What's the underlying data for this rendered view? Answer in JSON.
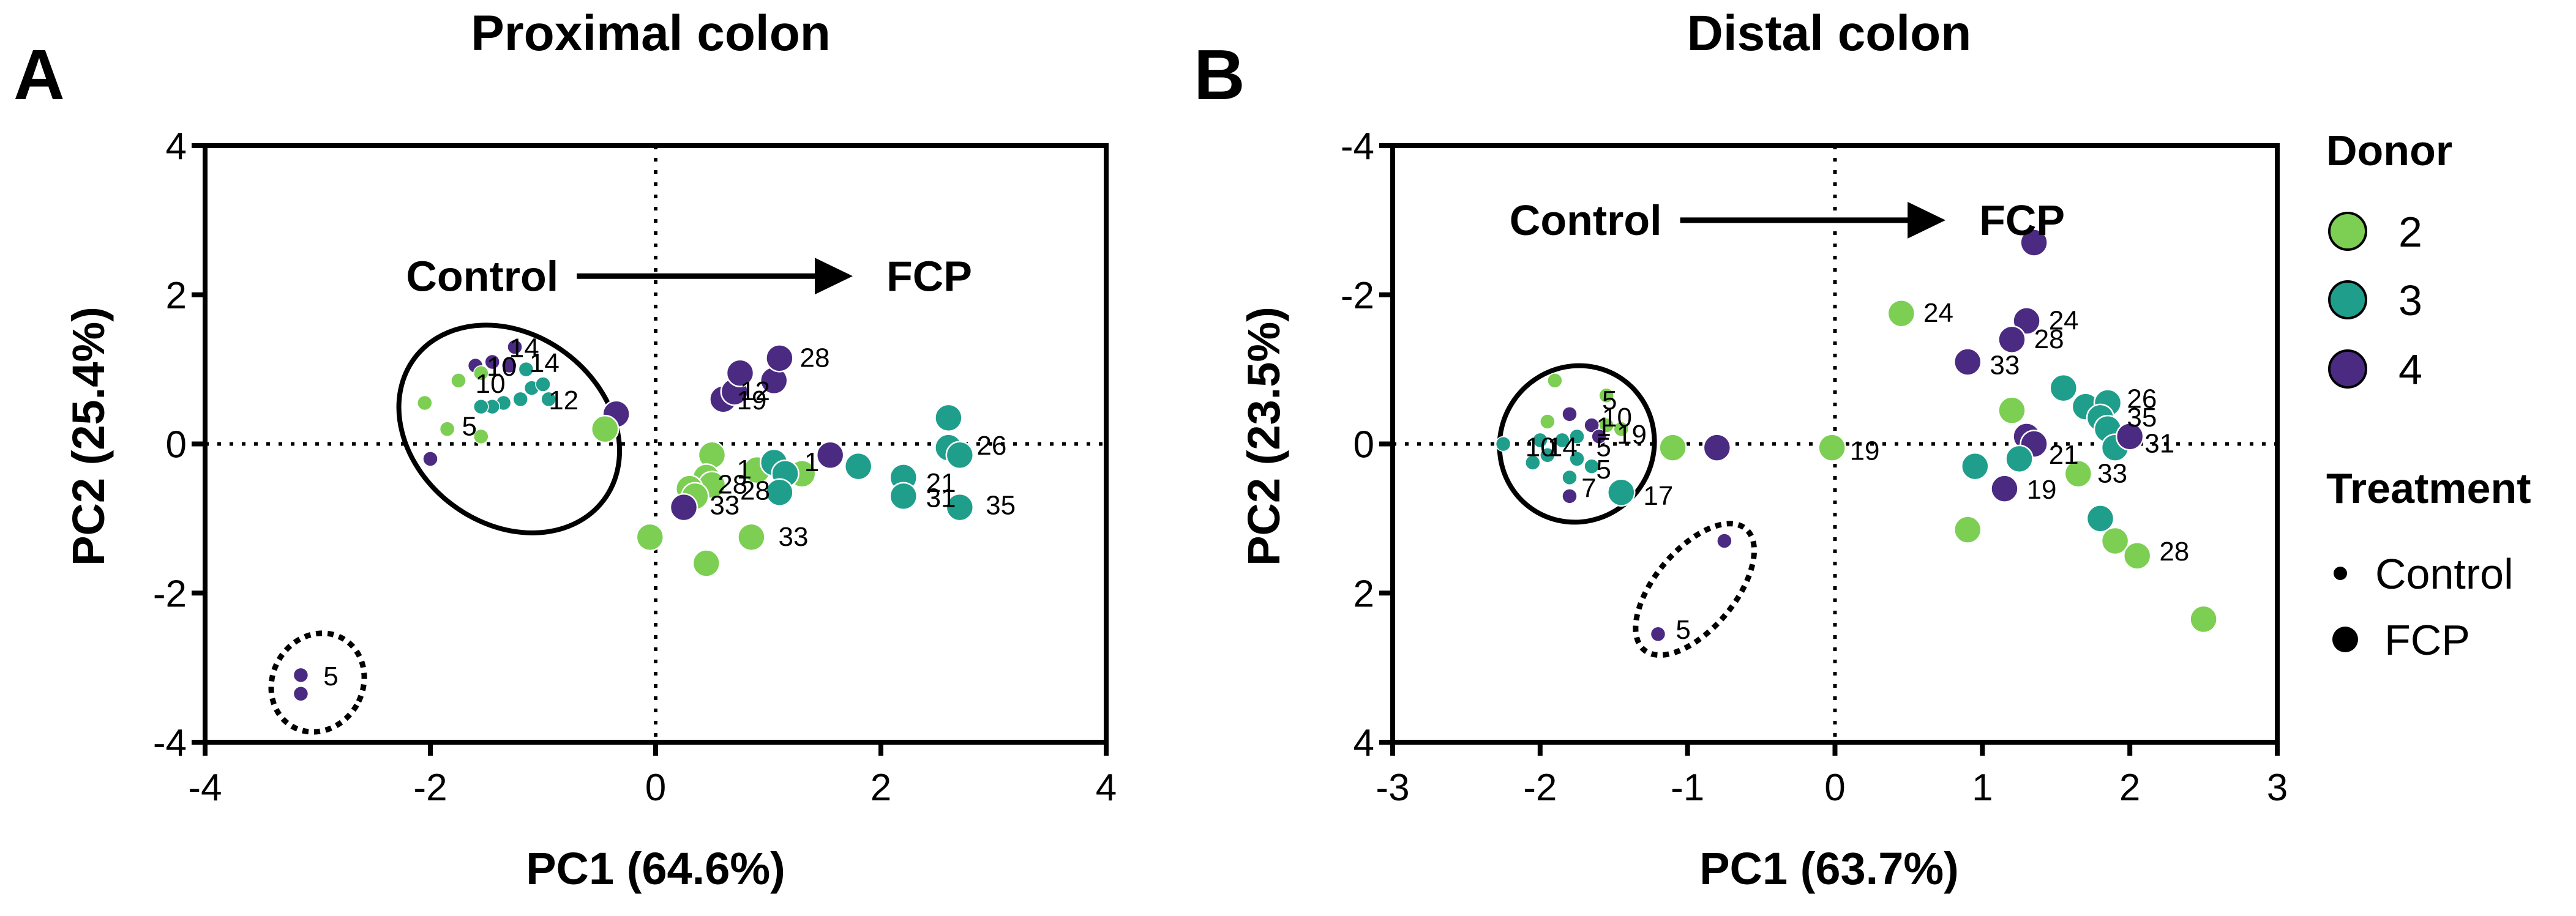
{
  "colors": {
    "donor2": "#7ccf52",
    "donor3": "#1f9e8c",
    "donor4": "#4b2a82",
    "axis": "#000000"
  },
  "figure_labels": [
    "A",
    "B"
  ],
  "legend": {
    "donor_title": "Donor",
    "donors": [
      {
        "label": "2",
        "color_key": "donor2"
      },
      {
        "label": "3",
        "color_key": "donor3"
      },
      {
        "label": "4",
        "color_key": "donor4"
      }
    ],
    "treatment_title": "Treatment",
    "treatments": [
      {
        "label": "Control",
        "size": "small"
      },
      {
        "label": "FCP",
        "size": "large"
      }
    ]
  },
  "chart_data": [
    {
      "type": "scatter",
      "panel": "A",
      "title": "Proximal colon",
      "xlabel": "PC1 (64.6%)",
      "ylabel": "PC2 (25.4%)",
      "xlim": [
        -4,
        4
      ],
      "ylim": [
        -4,
        4
      ],
      "y_inverted": false,
      "xticks": [
        -4,
        -2,
        0,
        2,
        4
      ],
      "yticks": [
        4,
        2,
        0,
        -2,
        -4
      ],
      "reference_lines": {
        "x": 0,
        "y": 0,
        "style": "dotted"
      },
      "arrow": {
        "from_label": "Control",
        "to_label": "FCP",
        "x1": -0.7,
        "x2": 1.75,
        "y": 2.25
      },
      "ellipses": [
        {
          "cx": -1.3,
          "cy": 0.2,
          "rx": 1.05,
          "ry": 1.27,
          "rotate": 37,
          "style": "solid"
        },
        {
          "cx": -3.0,
          "cy": -3.2,
          "rx": 0.4,
          "ry": 0.68,
          "rotate": 30,
          "style": "dotted"
        }
      ],
      "points": [
        {
          "x": -1.25,
          "y": 1.3,
          "donor": 4,
          "treatment": "Control"
        },
        {
          "x": -1.45,
          "y": 1.1,
          "donor": 4,
          "treatment": "Control"
        },
        {
          "x": -1.3,
          "y": 1.05,
          "donor": 4,
          "treatment": "Control"
        },
        {
          "x": -1.6,
          "y": 1.05,
          "donor": 4,
          "treatment": "Control"
        },
        {
          "x": -1.15,
          "y": 1.0,
          "donor": 3,
          "treatment": "Control"
        },
        {
          "x": -1.55,
          "y": 0.95,
          "donor": 2,
          "treatment": "Control"
        },
        {
          "x": -1.75,
          "y": 0.85,
          "donor": 2,
          "treatment": "Control"
        },
        {
          "x": -1.1,
          "y": 0.75,
          "donor": 3,
          "treatment": "Control"
        },
        {
          "x": -1.0,
          "y": 0.8,
          "donor": 3,
          "treatment": "Control"
        },
        {
          "x": -0.95,
          "y": 0.6,
          "donor": 3,
          "treatment": "Control"
        },
        {
          "x": -1.2,
          "y": 0.6,
          "donor": 3,
          "treatment": "Control"
        },
        {
          "x": -1.35,
          "y": 0.55,
          "donor": 3,
          "treatment": "Control"
        },
        {
          "x": -1.45,
          "y": 0.5,
          "donor": 3,
          "treatment": "Control"
        },
        {
          "x": -1.55,
          "y": 0.5,
          "donor": 3,
          "treatment": "Control"
        },
        {
          "x": -2.05,
          "y": 0.55,
          "donor": 2,
          "treatment": "Control"
        },
        {
          "x": -1.85,
          "y": 0.2,
          "donor": 2,
          "treatment": "Control"
        },
        {
          "x": -1.55,
          "y": 0.1,
          "donor": 2,
          "treatment": "Control"
        },
        {
          "x": -2.0,
          "y": -0.2,
          "donor": 4,
          "treatment": "Control"
        },
        {
          "x": -3.15,
          "y": -3.1,
          "donor": 4,
          "treatment": "Control"
        },
        {
          "x": -3.15,
          "y": -3.35,
          "donor": 4,
          "treatment": "Control"
        },
        {
          "x": -0.35,
          "y": 0.4,
          "donor": 4,
          "treatment": "FCP"
        },
        {
          "x": -0.45,
          "y": 0.2,
          "donor": 2,
          "treatment": "FCP"
        },
        {
          "x": 0.6,
          "y": 0.6,
          "donor": 4,
          "treatment": "FCP"
        },
        {
          "x": 0.7,
          "y": 0.7,
          "donor": 4,
          "treatment": "FCP"
        },
        {
          "x": 0.75,
          "y": 0.95,
          "donor": 4,
          "treatment": "FCP"
        },
        {
          "x": 1.05,
          "y": 0.85,
          "donor": 4,
          "treatment": "FCP"
        },
        {
          "x": 1.1,
          "y": 1.15,
          "donor": 4,
          "treatment": "FCP"
        },
        {
          "x": 1.55,
          "y": -0.15,
          "donor": 4,
          "treatment": "FCP"
        },
        {
          "x": 0.5,
          "y": -0.15,
          "donor": 2,
          "treatment": "FCP"
        },
        {
          "x": 0.45,
          "y": -0.45,
          "donor": 2,
          "treatment": "FCP"
        },
        {
          "x": 0.9,
          "y": -0.35,
          "donor": 2,
          "treatment": "FCP"
        },
        {
          "x": 1.3,
          "y": -0.4,
          "donor": 2,
          "treatment": "FCP"
        },
        {
          "x": 0.5,
          "y": -0.55,
          "donor": 2,
          "treatment": "FCP"
        },
        {
          "x": 0.3,
          "y": -0.6,
          "donor": 2,
          "treatment": "FCP"
        },
        {
          "x": 0.35,
          "y": -0.7,
          "donor": 2,
          "treatment": "FCP"
        },
        {
          "x": 0.25,
          "y": -0.85,
          "donor": 4,
          "treatment": "FCP"
        },
        {
          "x": 1.05,
          "y": -0.25,
          "donor": 3,
          "treatment": "FCP"
        },
        {
          "x": 1.15,
          "y": -0.4,
          "donor": 3,
          "treatment": "FCP"
        },
        {
          "x": 1.1,
          "y": -0.65,
          "donor": 3,
          "treatment": "FCP"
        },
        {
          "x": 1.8,
          "y": -0.3,
          "donor": 3,
          "treatment": "FCP"
        },
        {
          "x": 2.2,
          "y": -0.45,
          "donor": 3,
          "treatment": "FCP"
        },
        {
          "x": 2.2,
          "y": -0.7,
          "donor": 3,
          "treatment": "FCP"
        },
        {
          "x": 2.6,
          "y": 0.35,
          "donor": 3,
          "treatment": "FCP"
        },
        {
          "x": 2.6,
          "y": -0.05,
          "donor": 3,
          "treatment": "FCP"
        },
        {
          "x": 2.7,
          "y": -0.15,
          "donor": 3,
          "treatment": "FCP"
        },
        {
          "x": 2.7,
          "y": -0.85,
          "donor": 3,
          "treatment": "FCP"
        },
        {
          "x": -0.05,
          "y": -1.25,
          "donor": 2,
          "treatment": "FCP"
        },
        {
          "x": 0.45,
          "y": -1.6,
          "donor": 2,
          "treatment": "FCP"
        },
        {
          "x": 0.85,
          "y": -1.25,
          "donor": 2,
          "treatment": "FCP"
        }
      ],
      "annotations": [
        {
          "text": "14",
          "x": -1.3,
          "y": 1.28
        },
        {
          "text": "10",
          "x": -1.5,
          "y": 1.03
        },
        {
          "text": "14",
          "x": -1.12,
          "y": 1.08
        },
        {
          "text": "10",
          "x": -1.6,
          "y": 0.8
        },
        {
          "text": "12",
          "x": -0.95,
          "y": 0.58
        },
        {
          "text": "5",
          "x": -1.72,
          "y": 0.23
        },
        {
          "text": "28",
          "x": 1.28,
          "y": 1.15
        },
        {
          "text": "12",
          "x": 0.75,
          "y": 0.7
        },
        {
          "text": "19",
          "x": 0.72,
          "y": 0.58
        },
        {
          "text": "26",
          "x": 2.85,
          "y": -0.03
        },
        {
          "text": "1",
          "x": 0.72,
          "y": -0.35
        },
        {
          "text": "1",
          "x": 1.32,
          "y": -0.25
        },
        {
          "text": "28",
          "x": 0.55,
          "y": -0.55
        },
        {
          "text": "28",
          "x": 0.75,
          "y": -0.63
        },
        {
          "text": "33",
          "x": 0.48,
          "y": -0.83
        },
        {
          "text": "21",
          "x": 2.4,
          "y": -0.53
        },
        {
          "text": "31",
          "x": 2.4,
          "y": -0.73
        },
        {
          "text": "35",
          "x": 2.93,
          "y": -0.83
        },
        {
          "text": "33",
          "x": 1.09,
          "y": -1.25
        },
        {
          "text": "5",
          "x": -2.95,
          "y": -3.12
        }
      ]
    },
    {
      "type": "scatter",
      "panel": "B",
      "title": "Distal colon",
      "xlabel": "PC1 (63.7%)",
      "ylabel": "PC2 (23.5%)",
      "xlim": [
        -3,
        3
      ],
      "ylim": [
        -4,
        4
      ],
      "y_inverted": true,
      "xticks": [
        -3,
        -2,
        -1,
        0,
        1,
        2,
        3
      ],
      "yticks": [
        -4,
        -2,
        0,
        2,
        4
      ],
      "reference_lines": {
        "x": 0,
        "y": 0,
        "style": "dotted"
      },
      "arrow": {
        "from_label": "Control",
        "to_label": "FCP",
        "x1": -1.05,
        "x2": 0.75,
        "y": -3.0
      },
      "ellipses": [
        {
          "cx": -1.75,
          "cy": 0.0,
          "rx": 0.52,
          "ry": 1.06,
          "rotate": 35,
          "style": "solid"
        },
        {
          "cx": -0.95,
          "cy": 1.95,
          "rx": 0.27,
          "ry": 1.06,
          "rotate": 40,
          "style": "dotted"
        }
      ],
      "points": [
        {
          "x": -1.9,
          "y": -0.85,
          "donor": 2,
          "treatment": "Control"
        },
        {
          "x": -1.55,
          "y": -0.65,
          "donor": 2,
          "treatment": "Control"
        },
        {
          "x": -1.95,
          "y": -0.3,
          "donor": 2,
          "treatment": "Control"
        },
        {
          "x": -1.8,
          "y": -0.4,
          "donor": 4,
          "treatment": "Control"
        },
        {
          "x": -1.65,
          "y": -0.25,
          "donor": 4,
          "treatment": "Control"
        },
        {
          "x": -1.55,
          "y": -0.25,
          "donor": 2,
          "treatment": "Control"
        },
        {
          "x": -1.45,
          "y": -0.2,
          "donor": 2,
          "treatment": "Control"
        },
        {
          "x": -1.6,
          "y": -0.1,
          "donor": 4,
          "treatment": "Control"
        },
        {
          "x": -1.75,
          "y": -0.1,
          "donor": 3,
          "treatment": "Control"
        },
        {
          "x": -1.85,
          "y": -0.05,
          "donor": 3,
          "treatment": "Control"
        },
        {
          "x": -2.0,
          "y": -0.05,
          "donor": 3,
          "treatment": "Control"
        },
        {
          "x": -2.25,
          "y": 0.0,
          "donor": 3,
          "treatment": "Control"
        },
        {
          "x": -1.95,
          "y": 0.15,
          "donor": 3,
          "treatment": "Control"
        },
        {
          "x": -2.05,
          "y": 0.25,
          "donor": 3,
          "treatment": "Control"
        },
        {
          "x": -1.75,
          "y": 0.2,
          "donor": 3,
          "treatment": "Control"
        },
        {
          "x": -1.65,
          "y": 0.3,
          "donor": 3,
          "treatment": "Control"
        },
        {
          "x": -1.8,
          "y": 0.45,
          "donor": 3,
          "treatment": "Control"
        },
        {
          "x": -1.8,
          "y": 0.7,
          "donor": 4,
          "treatment": "Control"
        },
        {
          "x": -0.75,
          "y": 1.3,
          "donor": 4,
          "treatment": "Control"
        },
        {
          "x": -1.2,
          "y": 2.55,
          "donor": 4,
          "treatment": "Control"
        },
        {
          "x": -1.45,
          "y": 0.65,
          "donor": 3,
          "treatment": "FCP"
        },
        {
          "x": -1.1,
          "y": 0.05,
          "donor": 2,
          "treatment": "FCP"
        },
        {
          "x": -0.8,
          "y": 0.05,
          "donor": 4,
          "treatment": "FCP"
        },
        {
          "x": -0.02,
          "y": 0.05,
          "donor": 2,
          "treatment": "FCP"
        },
        {
          "x": 0.45,
          "y": -1.75,
          "donor": 2,
          "treatment": "FCP"
        },
        {
          "x": 1.35,
          "y": -2.7,
          "donor": 4,
          "treatment": "FCP"
        },
        {
          "x": 1.3,
          "y": -1.65,
          "donor": 4,
          "treatment": "FCP"
        },
        {
          "x": 1.2,
          "y": -1.4,
          "donor": 4,
          "treatment": "FCP"
        },
        {
          "x": 0.9,
          "y": -1.1,
          "donor": 4,
          "treatment": "FCP"
        },
        {
          "x": 1.55,
          "y": -0.75,
          "donor": 3,
          "treatment": "FCP"
        },
        {
          "x": 1.7,
          "y": -0.5,
          "donor": 3,
          "treatment": "FCP"
        },
        {
          "x": 1.85,
          "y": -0.55,
          "donor": 3,
          "treatment": "FCP"
        },
        {
          "x": 1.8,
          "y": -0.35,
          "donor": 3,
          "treatment": "FCP"
        },
        {
          "x": 1.85,
          "y": -0.2,
          "donor": 3,
          "treatment": "FCP"
        },
        {
          "x": 1.9,
          "y": 0.05,
          "donor": 3,
          "treatment": "FCP"
        },
        {
          "x": 2.0,
          "y": -0.1,
          "donor": 4,
          "treatment": "FCP"
        },
        {
          "x": 1.2,
          "y": -0.45,
          "donor": 2,
          "treatment": "FCP"
        },
        {
          "x": 1.3,
          "y": -0.1,
          "donor": 4,
          "treatment": "FCP"
        },
        {
          "x": 1.35,
          "y": 0.0,
          "donor": 4,
          "treatment": "FCP"
        },
        {
          "x": 1.25,
          "y": 0.2,
          "donor": 3,
          "treatment": "FCP"
        },
        {
          "x": 0.95,
          "y": 0.3,
          "donor": 3,
          "treatment": "FCP"
        },
        {
          "x": 1.65,
          "y": 0.4,
          "donor": 2,
          "treatment": "FCP"
        },
        {
          "x": 1.15,
          "y": 0.6,
          "donor": 4,
          "treatment": "FCP"
        },
        {
          "x": 0.9,
          "y": 1.15,
          "donor": 2,
          "treatment": "FCP"
        },
        {
          "x": 1.8,
          "y": 1.0,
          "donor": 3,
          "treatment": "FCP"
        },
        {
          "x": 1.9,
          "y": 1.3,
          "donor": 2,
          "treatment": "FCP"
        },
        {
          "x": 2.05,
          "y": 1.5,
          "donor": 2,
          "treatment": "FCP"
        },
        {
          "x": 2.5,
          "y": 2.35,
          "donor": 2,
          "treatment": "FCP"
        }
      ],
      "annotations": [
        {
          "text": "5",
          "x": -1.58,
          "y": -0.58
        },
        {
          "text": "10",
          "x": -1.58,
          "y": -0.35
        },
        {
          "text": "1",
          "x": -1.62,
          "y": -0.22
        },
        {
          "text": "19",
          "x": -1.48,
          "y": -0.12
        },
        {
          "text": "10",
          "x": -2.1,
          "y": 0.05
        },
        {
          "text": "14",
          "x": -1.95,
          "y": 0.05
        },
        {
          "text": "5",
          "x": -1.62,
          "y": 0.05
        },
        {
          "text": "5",
          "x": -1.62,
          "y": 0.35
        },
        {
          "text": "7",
          "x": -1.72,
          "y": 0.6
        },
        {
          "text": "17",
          "x": -1.3,
          "y": 0.7
        },
        {
          "text": "19",
          "x": 0.1,
          "y": 0.1
        },
        {
          "text": "24",
          "x": 0.6,
          "y": -1.75
        },
        {
          "text": "24",
          "x": 1.45,
          "y": -1.65
        },
        {
          "text": "28",
          "x": 1.35,
          "y": -1.4
        },
        {
          "text": "33",
          "x": 1.05,
          "y": -1.05
        },
        {
          "text": "26",
          "x": 1.98,
          "y": -0.6
        },
        {
          "text": "35",
          "x": 1.98,
          "y": -0.35
        },
        {
          "text": "31",
          "x": 2.1,
          "y": 0.0
        },
        {
          "text": "21",
          "x": 1.45,
          "y": 0.15
        },
        {
          "text": "33",
          "x": 1.78,
          "y": 0.4
        },
        {
          "text": "19",
          "x": 1.3,
          "y": 0.62
        },
        {
          "text": "28",
          "x": 2.2,
          "y": 1.45
        },
        {
          "text": "5",
          "x": -1.08,
          "y": 2.5
        }
      ]
    }
  ]
}
